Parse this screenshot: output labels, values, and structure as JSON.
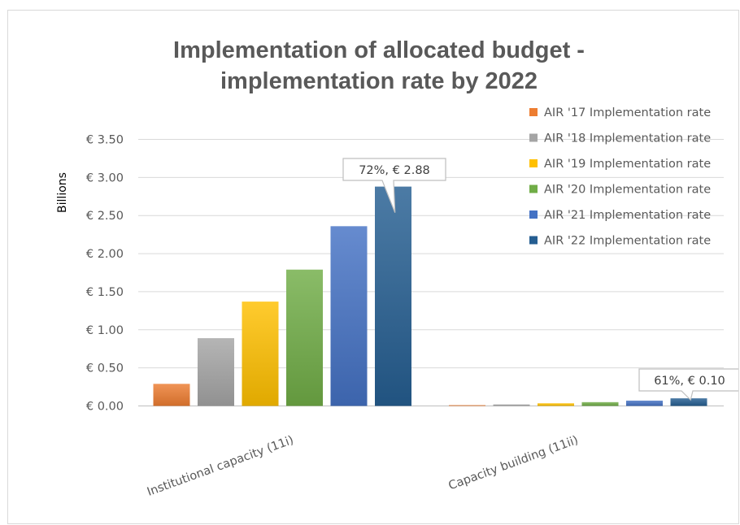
{
  "chart_data": {
    "type": "bar",
    "title_lines": [
      "Implementation of allocated budget -",
      "implementation rate by 2022"
    ],
    "ylabel": "Billions",
    "ylim": [
      0,
      3.5
    ],
    "yticks": [
      0,
      0.5,
      1.0,
      1.5,
      2.0,
      2.5,
      3.0,
      3.5
    ],
    "ytick_labels": [
      "€ 0.00",
      "€ 0.50",
      "€ 1.00",
      "€ 1.50",
      "€ 2.00",
      "€ 2.50",
      "€ 3.00",
      "€ 3.50"
    ],
    "grid": true,
    "legend_position": "right",
    "categories": [
      "Institutional capacity (11i)",
      "Capacity building (11ii)"
    ],
    "series": [
      {
        "name": "AIR '17 Implementation rate",
        "color": "#ed7d31",
        "values": [
          0.29,
          0.005
        ]
      },
      {
        "name": "AIR '18 Implementation rate",
        "color": "#a5a5a5",
        "values": [
          0.89,
          0.02
        ]
      },
      {
        "name": "AIR '19 Implementation rate",
        "color": "#ffc000",
        "values": [
          1.37,
          0.035
        ]
      },
      {
        "name": "AIR '20 Implementation rate",
        "color": "#70ad47",
        "values": [
          1.79,
          0.05
        ]
      },
      {
        "name": "AIR '21 Implementation rate",
        "color": "#4472c4",
        "values": [
          2.36,
          0.07
        ]
      },
      {
        "name": "AIR '22 Implementation rate",
        "color": "#255e91",
        "values": [
          2.88,
          0.1
        ]
      }
    ],
    "annotations": [
      {
        "text": "72%, € 2.88",
        "category": 0,
        "series": 5
      },
      {
        "text": "61%, € 0.10",
        "category": 1,
        "series": 5
      }
    ]
  }
}
